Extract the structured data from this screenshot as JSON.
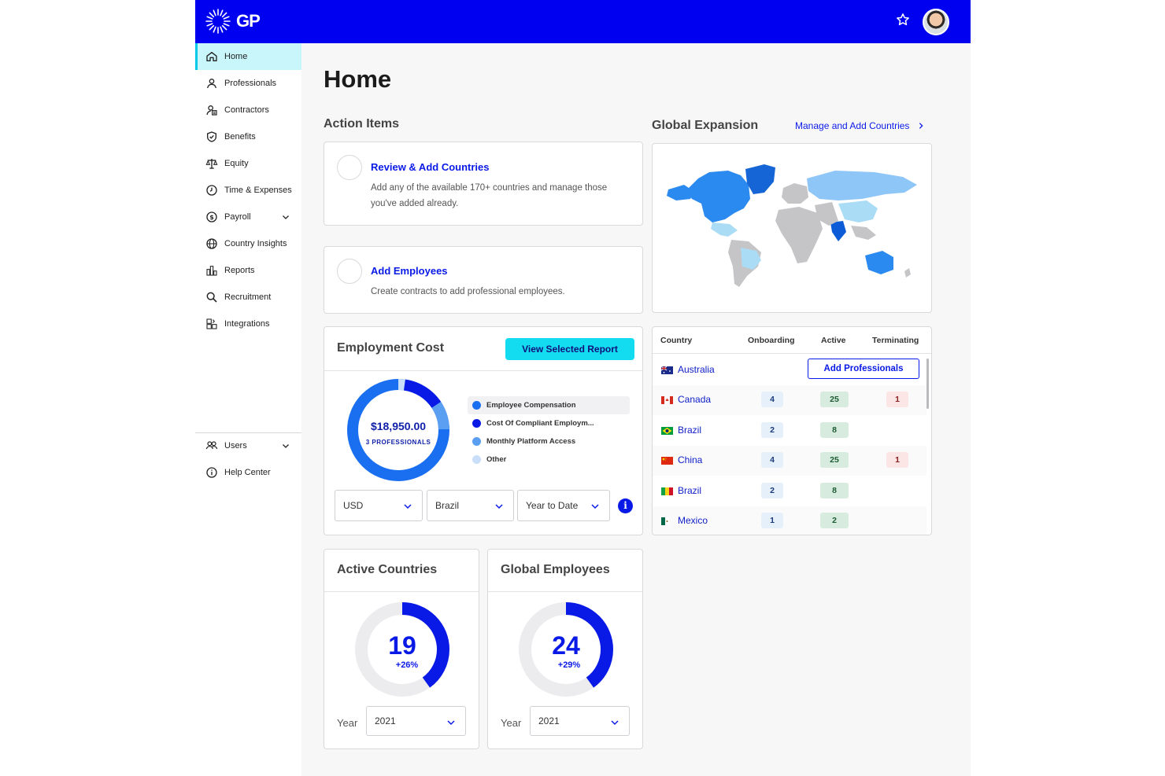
{
  "header": {
    "logo_text": "GP",
    "star_icon": "star-icon",
    "avatar": "user-avatar"
  },
  "sidebar": {
    "items": [
      {
        "label": "Home",
        "icon": "home-icon",
        "active": true
      },
      {
        "label": "Professionals",
        "icon": "person-icon"
      },
      {
        "label": "Contractors",
        "icon": "contractor-icon"
      },
      {
        "label": "Benefits",
        "icon": "shield-icon"
      },
      {
        "label": "Equity",
        "icon": "scale-icon"
      },
      {
        "label": "Time & Expenses",
        "icon": "clock-icon"
      },
      {
        "label": "Payroll",
        "icon": "dollar-icon",
        "expandable": true
      },
      {
        "label": "Country Insights",
        "icon": "globe-icon"
      },
      {
        "label": "Reports",
        "icon": "reports-icon"
      },
      {
        "label": "Recruitment",
        "icon": "search-icon"
      },
      {
        "label": "Integrations",
        "icon": "integrations-icon"
      }
    ],
    "bottom_items": [
      {
        "label": "Users",
        "icon": "users-icon",
        "expandable": true
      },
      {
        "label": "Help Center",
        "icon": "info-icon"
      }
    ]
  },
  "main": {
    "page_title": "Home",
    "action_items": {
      "title": "Action Items",
      "items": [
        {
          "title": "Review & Add Countries",
          "description": "Add any of the available 170+ countries and manage those you've added already."
        },
        {
          "title": "Add Employees",
          "description": "Create contracts to add professional employees."
        }
      ]
    },
    "employment_cost": {
      "title": "Employment Cost",
      "button": "View Selected Report",
      "total": "$18,950.00",
      "subtitle": "3 PROFESSIONALS",
      "legend": [
        {
          "label": "Employee Compensation",
          "color": "#1a6ff0"
        },
        {
          "label": "Cost Of Compliant Employm...",
          "color": "#0a1ae6"
        },
        {
          "label": "Monthly Platform Access",
          "color": "#5b9ff2"
        },
        {
          "label": "Other",
          "color": "#c9def8"
        }
      ],
      "filters": {
        "currency": "USD",
        "country": "Brazil",
        "period": "Year to Date"
      }
    },
    "active_countries": {
      "title": "Active Countries",
      "value": "19",
      "change": "+26%",
      "fraction": 0.4,
      "year_label": "Year",
      "year": "2021"
    },
    "global_employees": {
      "title": "Global Employees",
      "value": "24",
      "change": "+29%",
      "fraction": 0.4,
      "year_label": "Year",
      "year": "2021"
    },
    "global_expansion": {
      "title": "Global Expansion",
      "link": "Manage and Add Countries",
      "table": {
        "headers": [
          "Country",
          "Onboarding",
          "Active",
          "Terminating"
        ],
        "add_button": "Add Professionals",
        "rows": [
          {
            "country": "Australia",
            "onboarding": "",
            "active": "",
            "terminating": ""
          },
          {
            "country": "Canada",
            "onboarding": "4",
            "active": "25",
            "terminating": "1"
          },
          {
            "country": "Brazil",
            "onboarding": "2",
            "active": "8",
            "terminating": ""
          },
          {
            "country": "China",
            "onboarding": "4",
            "active": "25",
            "terminating": "1"
          },
          {
            "country": "Brazil",
            "onboarding": "2",
            "active": "8",
            "terminating": ""
          },
          {
            "country": "Mexico",
            "onboarding": "1",
            "active": "2",
            "terminating": ""
          }
        ]
      }
    }
  }
}
